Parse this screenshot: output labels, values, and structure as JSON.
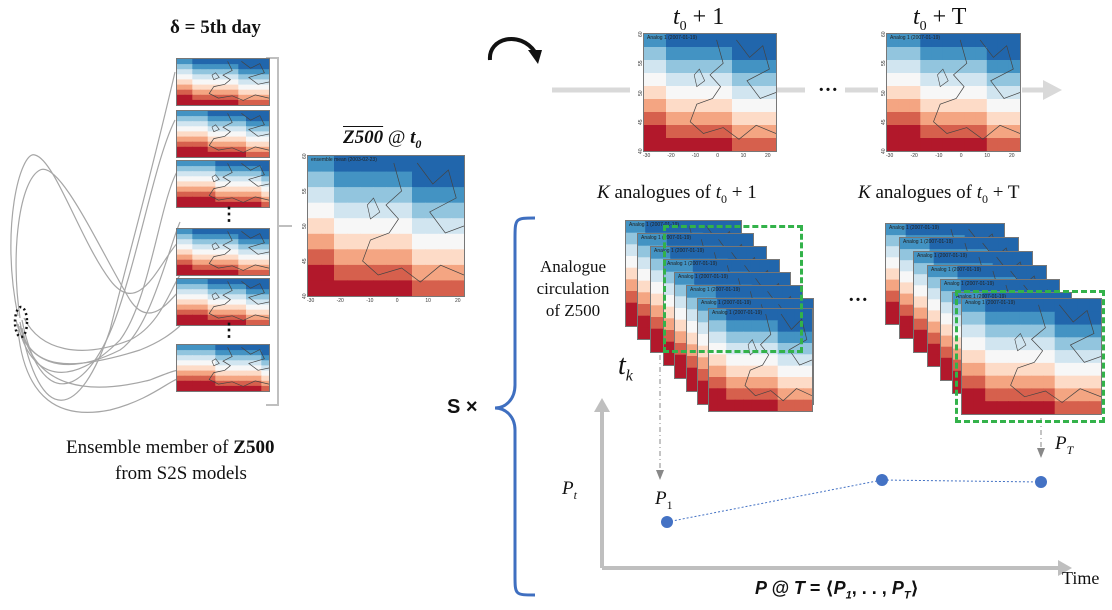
{
  "delta_label": "δ = 5th day",
  "ensemble_caption": {
    "line1_prefix": "Ensemble member of ",
    "line1_bold": "Z500",
    "line2": "from S2S models"
  },
  "ensemble_dots": [
    "⋮",
    "⋮"
  ],
  "mean_map": {
    "title_var": "Z500",
    "title_at": " @ ",
    "title_time": "t",
    "title_sub": "0",
    "inner_label": "ensemble mean (2003-02-23)",
    "x_ticks": [
      "-30",
      "-20",
      "-10",
      "0",
      "10",
      "20"
    ],
    "y_ticks": [
      "40",
      "45",
      "50",
      "55",
      "60"
    ]
  },
  "forecast_maps": {
    "t1": {
      "prefix": "t",
      "sub": "0",
      "suffix": " + 1",
      "inner_label": "Analog 1 (2007-01-19)"
    },
    "tT": {
      "prefix": "t",
      "sub": "0",
      "suffix": " + T",
      "inner_label": "Analog 1 (2007-01-19)"
    },
    "ellipsis": "…",
    "x_ticks": [
      "-30",
      "-20",
      "-10",
      "0",
      "10",
      "20"
    ],
    "y_ticks": [
      "40",
      "45",
      "50",
      "55",
      "60"
    ]
  },
  "analogue_labels": {
    "left": {
      "k": "K",
      "text": " analogues of ",
      "t": "t",
      "sub": "0",
      "suffix": " + 1"
    },
    "right": {
      "k": "K",
      "text": " analogues of ",
      "t": "t",
      "sub": "0",
      "suffix": " + T"
    },
    "stack_inner_label": "Analog 1 (2007-01-19)",
    "ellipsis": "…"
  },
  "analogue_circulation": [
    "Analogue",
    "circulation",
    "of Z500"
  ],
  "tk_label": {
    "t": "t",
    "sub": "k"
  },
  "s_times": "S ×",
  "prob": {
    "p_axis": {
      "p": "P",
      "sub": "t"
    },
    "p1": {
      "p": "P",
      "sub": "1"
    },
    "pT": {
      "p": "P",
      "sub": "T"
    },
    "time_label": "Time",
    "formula": "P @ T = ⟨P₁, . . , P_T⟩",
    "formula_parts": {
      "a": "P",
      "b": " @ ",
      "c": "T",
      "d": " = ⟨",
      "e": "P",
      "f": "1",
      "g": ", . . , ",
      "h": "P",
      "i": "T",
      "j": "⟩"
    }
  },
  "colors": {
    "blue": "#3f6fc0",
    "green_dash": "#33b24a",
    "gray_line": "#d9d9d9",
    "member_line": "#a6a6a6",
    "dot_blue": "#4472c4"
  }
}
